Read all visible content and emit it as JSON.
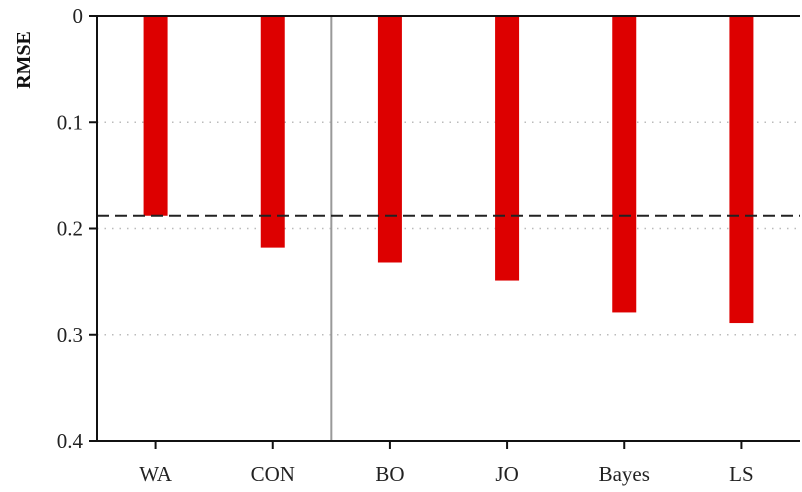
{
  "chart_data": {
    "type": "bar",
    "title": "",
    "xlabel": "",
    "ylabel": "RMSE",
    "y_axis_inverted": true,
    "ylim": [
      0,
      0.4
    ],
    "yticks": [
      "0",
      "0.1",
      "0.2",
      "0.3",
      "0.4"
    ],
    "categories": [
      "WA",
      "CON",
      "BO",
      "JO",
      "Bayes",
      "LS"
    ],
    "values": [
      0.188,
      0.218,
      0.232,
      0.249,
      0.279,
      0.289
    ],
    "bar_color": "#dd0000",
    "reference_line": {
      "value": 0.188,
      "style": "dashed",
      "color": "#222222"
    },
    "separator_after_category_index": 1,
    "separator_color": "#999999",
    "grid": {
      "horizontal": true,
      "style": "dotted",
      "color": "#bbbbbb"
    },
    "legend": "none"
  }
}
